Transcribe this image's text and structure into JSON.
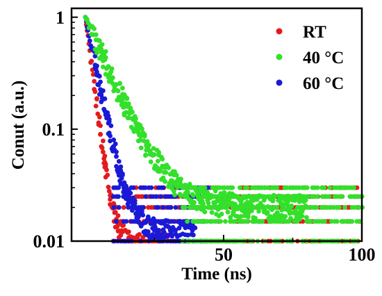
{
  "chart_data": {
    "type": "scatter",
    "xlabel": "Time (ns)",
    "ylabel": "Conut (a.u.)",
    "xlim": [
      -5,
      100
    ],
    "ylim": [
      0.01,
      1.2
    ],
    "y_scale": "log",
    "x_ticks": [
      {
        "value": 50,
        "label": "50"
      },
      {
        "value": 100,
        "label": "100"
      }
    ],
    "y_ticks": [
      {
        "value": 1,
        "label": "1"
      },
      {
        "value": 0.1,
        "label": "0.1"
      },
      {
        "value": 0.01,
        "label": "0.01"
      }
    ],
    "legend_position": "top-right",
    "grid": false,
    "series": [
      {
        "name": "RT",
        "color": "#e41a1c",
        "decay": {
          "x0": 0.0,
          "tau": 2.2,
          "floor": 0.0095,
          "cutoff": 30,
          "spread": 0.45
        },
        "floor_levels": [
          0.03,
          0.025,
          0.02,
          0.015,
          0.01
        ],
        "floor_x_range": [
          10,
          100
        ]
      },
      {
        "name": "40 °C",
        "color": "#33e02a",
        "decay": {
          "x0": 0.0,
          "tau": 7.5,
          "floor": 0.02,
          "cutoff": 80,
          "spread": 0.5
        },
        "floor_levels": [
          0.03,
          0.025,
          0.02,
          0.015,
          0.01
        ],
        "floor_x_range": [
          35,
          100
        ]
      },
      {
        "name": "60 °C",
        "color": "#1a1ad6",
        "decay": {
          "x0": 0.0,
          "tau": 3.6,
          "floor": 0.012,
          "cutoff": 40,
          "spread": 0.45
        },
        "floor_levels": [
          0.03,
          0.025,
          0.02,
          0.015,
          0.01
        ],
        "floor_x_range": [
          10,
          45
        ]
      }
    ]
  }
}
